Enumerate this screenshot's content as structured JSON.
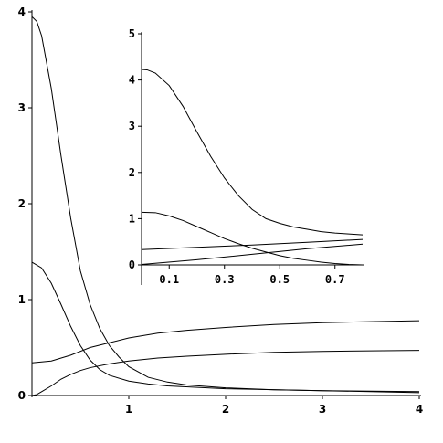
{
  "chart_data": [
    {
      "type": "line",
      "title": "",
      "xlabel": "",
      "ylabel": "",
      "xlim": [
        0,
        4
      ],
      "ylim": [
        0,
        4
      ],
      "xticks": [
        "1",
        "2",
        "3",
        "4"
      ],
      "yticks": [
        "0",
        "1",
        "2",
        "3",
        "4"
      ],
      "grid": false,
      "series": [
        {
          "color": "#000000",
          "x": [
            0,
            0.05,
            0.1,
            0.2,
            0.3,
            0.4,
            0.5,
            0.6,
            0.7,
            0.8,
            0.9,
            1.0,
            1.2,
            1.4,
            1.6,
            2.0,
            2.5,
            3.0,
            3.5,
            4.0
          ],
          "y": [
            3.95,
            3.9,
            3.75,
            3.2,
            2.5,
            1.85,
            1.3,
            0.95,
            0.7,
            0.52,
            0.4,
            0.3,
            0.19,
            0.14,
            0.11,
            0.08,
            0.06,
            0.05,
            0.04,
            0.03
          ]
        },
        {
          "color": "#000000",
          "x": [
            0,
            0.1,
            0.2,
            0.3,
            0.4,
            0.5,
            0.6,
            0.7,
            0.8,
            1.0,
            1.2,
            1.4,
            2.0,
            3.0,
            4.0
          ],
          "y": [
            1.39,
            1.33,
            1.17,
            0.95,
            0.72,
            0.52,
            0.37,
            0.27,
            0.21,
            0.15,
            0.12,
            0.1,
            0.07,
            0.05,
            0.04
          ]
        },
        {
          "color": "#000000",
          "x": [
            0,
            0.2,
            0.4,
            0.6,
            0.8,
            1.0,
            1.3,
            1.6,
            2.0,
            2.5,
            3.0,
            3.5,
            4.0
          ],
          "y": [
            0.34,
            0.36,
            0.42,
            0.5,
            0.55,
            0.6,
            0.65,
            0.68,
            0.71,
            0.74,
            0.76,
            0.77,
            0.78
          ]
        },
        {
          "color": "#000000",
          "x": [
            0,
            0.05,
            0.1,
            0.2,
            0.3,
            0.4,
            0.5,
            0.6,
            0.8,
            1.0,
            1.3,
            1.6,
            2.0,
            2.5,
            3.0,
            3.5,
            4.0
          ],
          "y": [
            0.0,
            0.01,
            0.04,
            0.1,
            0.17,
            0.22,
            0.26,
            0.29,
            0.33,
            0.36,
            0.39,
            0.41,
            0.43,
            0.45,
            0.46,
            0.465,
            0.47
          ]
        }
      ]
    },
    {
      "type": "line",
      "title": "",
      "xlabel": "",
      "ylabel": "",
      "xlim": [
        0,
        0.8
      ],
      "ylim": [
        0,
        5
      ],
      "xticks": [
        "0.1",
        "0.3",
        "0.5",
        "0.7"
      ],
      "yticks": [
        "0",
        "1",
        "2",
        "3",
        "4",
        "5"
      ],
      "grid": false,
      "series": [
        {
          "color": "#000000",
          "x": [
            0.0,
            0.02,
            0.05,
            0.1,
            0.15,
            0.2,
            0.25,
            0.3,
            0.35,
            0.4,
            0.45,
            0.5,
            0.55,
            0.6,
            0.65,
            0.7,
            0.75,
            0.8
          ],
          "y": [
            4.23,
            4.22,
            4.15,
            3.88,
            3.43,
            2.88,
            2.35,
            1.88,
            1.5,
            1.2,
            1.0,
            0.9,
            0.82,
            0.77,
            0.72,
            0.69,
            0.67,
            0.65
          ]
        },
        {
          "color": "#000000",
          "x": [
            0.0,
            0.05,
            0.1,
            0.15,
            0.2,
            0.25,
            0.3,
            0.35,
            0.4,
            0.45,
            0.5,
            0.55,
            0.6,
            0.65,
            0.7,
            0.75,
            0.8
          ],
          "y": [
            1.14,
            1.13,
            1.06,
            0.96,
            0.83,
            0.7,
            0.57,
            0.46,
            0.36,
            0.28,
            0.2,
            0.14,
            0.1,
            0.06,
            0.03,
            0.01,
            0.0
          ]
        },
        {
          "color": "#000000",
          "x": [
            0.0,
            0.2,
            0.4,
            0.6,
            0.8
          ],
          "y": [
            0.33,
            0.38,
            0.43,
            0.49,
            0.55
          ]
        },
        {
          "color": "#000000",
          "x": [
            0.0,
            0.2,
            0.4,
            0.6,
            0.8
          ],
          "y": [
            0.01,
            0.11,
            0.23,
            0.35,
            0.45
          ]
        }
      ]
    }
  ]
}
